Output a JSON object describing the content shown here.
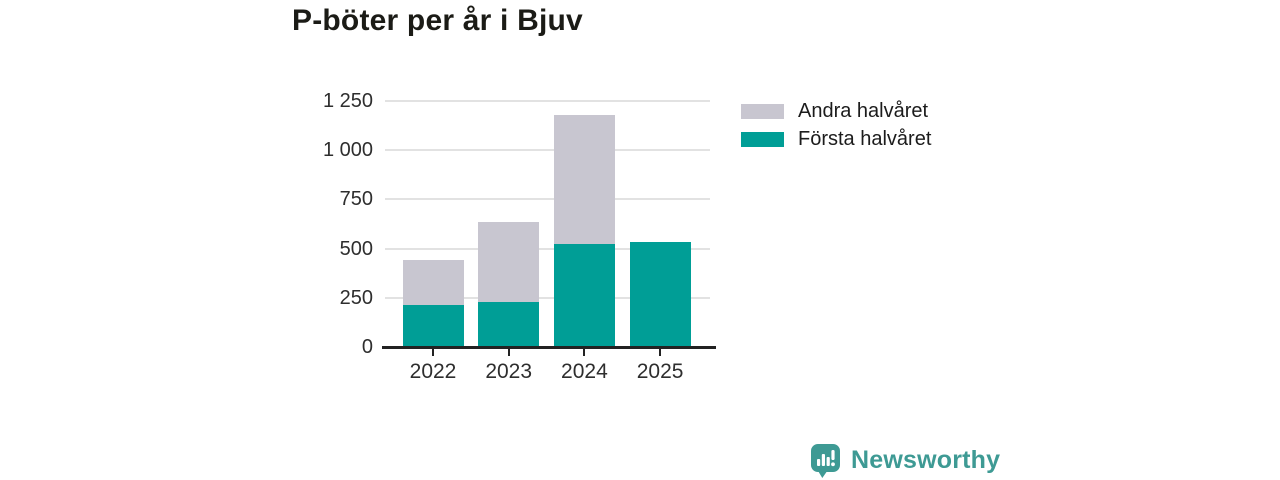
{
  "title": "P-böter per år i Bjuv",
  "colors": {
    "first_half": "#009e96",
    "second_half": "#c8c6d0",
    "gridline": "#e2e2e2",
    "axis": "#222222",
    "brand": "#3e9a94"
  },
  "legend": {
    "items": [
      {
        "label": "Andra halvåret",
        "color": "#c8c6d0"
      },
      {
        "label": "Första halvåret",
        "color": "#009e96"
      }
    ]
  },
  "chart_data": {
    "type": "bar",
    "stacked": true,
    "title": "P-böter per år i Bjuv",
    "categories": [
      "2022",
      "2023",
      "2024",
      "2025"
    ],
    "series": [
      {
        "name": "Första halvåret",
        "color": "#009e96",
        "values": [
          215,
          230,
          525,
          535
        ]
      },
      {
        "name": "Andra halvåret",
        "color": "#c8c6d0",
        "values": [
          225,
          405,
          655,
          0
        ]
      }
    ],
    "totals": [
      440,
      635,
      1180,
      535
    ],
    "xlabel": "",
    "ylabel": "",
    "ylim": [
      0,
      1250
    ],
    "yticks": [
      0,
      250,
      500,
      750,
      1000,
      1250
    ],
    "ytick_labels": [
      "0",
      "250",
      "500",
      "750",
      "1 000",
      "1 250"
    ],
    "grid": true,
    "legend_position": "right"
  },
  "footer": {
    "brand_name": "Newsworthy"
  }
}
